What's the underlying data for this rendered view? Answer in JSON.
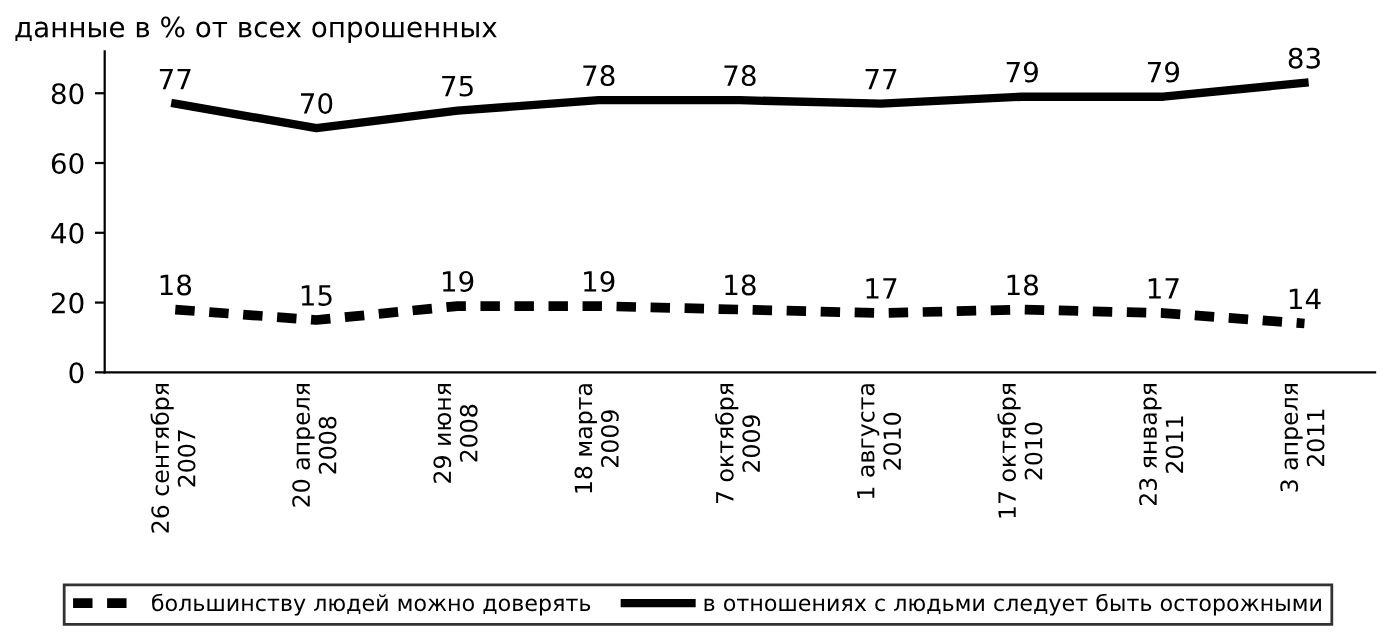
{
  "chart_data": {
    "type": "line",
    "title": "данные в % от всех опрошенных",
    "categories": [
      "26 сентября\n2007",
      "20 апреля\n2008",
      "29 июня\n2008",
      "18 марта\n2009",
      "7 октября\n2009",
      "1 августа\n2010",
      "17 октября\n2010",
      "23 января\n2011",
      "3 апреля\n2011"
    ],
    "series": [
      {
        "name": "большинству людей можно доверять",
        "color": "#000000",
        "line_style": "dashed",
        "values": [
          18,
          15,
          19,
          19,
          18,
          17,
          18,
          17,
          14
        ]
      },
      {
        "name": "в отношениях с людьми следует быть осторожными",
        "color": "#000000",
        "line_style": "solid",
        "values": [
          77,
          70,
          75,
          78,
          78,
          77,
          79,
          79,
          83
        ]
      }
    ],
    "ylim": [
      0,
      92
    ],
    "yticks": [
      0,
      20,
      40,
      60,
      80
    ],
    "data_labels": true,
    "grid": false,
    "legend": "bottom",
    "marker": "none"
  }
}
